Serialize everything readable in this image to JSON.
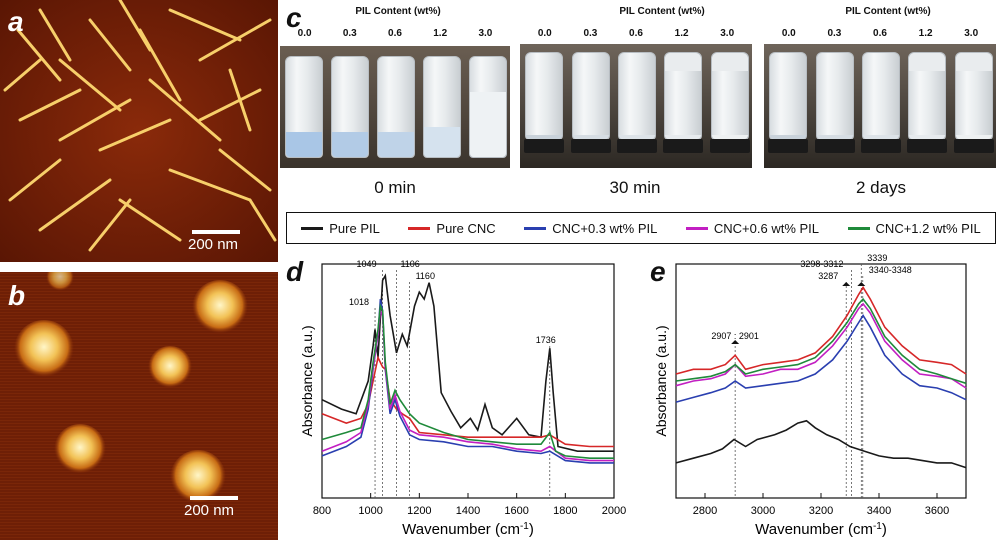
{
  "panels": {
    "a": {
      "letter": "a",
      "scale_label": "200 nm"
    },
    "b": {
      "letter": "b",
      "scale_label": "200 nm"
    },
    "c": {
      "letter": "c",
      "content_title": "PIL Content (wt%)",
      "concentrations": [
        "0.0",
        "0.3",
        "0.6",
        "1.2",
        "3.0"
      ],
      "time_labels": [
        "0 min",
        "30 min",
        "2 days"
      ]
    },
    "d": {
      "letter": "d"
    },
    "e": {
      "letter": "e"
    }
  },
  "legend": [
    {
      "label": "Pure PIL",
      "color": "#1a1a1a"
    },
    {
      "label": "Pure CNC",
      "color": "#d62728"
    },
    {
      "label": "CNC+0.3 wt% PIL",
      "color": "#2a3fb0"
    },
    {
      "label": "CNC+0.6 wt% PIL",
      "color": "#c21fc2"
    },
    {
      "label": "CNC+1.2 wt% PIL",
      "color": "#1f8a3a"
    }
  ],
  "chart_data": [
    {
      "type": "line",
      "panel": "d",
      "xlabel": "Wavenumber (cm",
      "xlabel_sup": "-1",
      "xlabel_end": ")",
      "ylabel": "Absorbance (a.u.)",
      "xlim": [
        800,
        2000
      ],
      "xticks": [
        "800",
        "1000",
        "1200",
        "1400",
        "1600",
        "1800",
        "2000"
      ],
      "annotations": [
        {
          "text": "1049",
          "x": 1049
        },
        {
          "text": "1106",
          "x": 1106
        },
        {
          "text": "1160",
          "x": 1160
        },
        {
          "text": "1018",
          "x": 1018
        },
        {
          "text": "1736",
          "x": 1736
        }
      ],
      "series": [
        {
          "name": "Pure PIL",
          "color": "#1a1a1a",
          "points": [
            [
              800,
              0.42
            ],
            [
              880,
              0.38
            ],
            [
              940,
              0.36
            ],
            [
              990,
              0.5
            ],
            [
              1010,
              0.65
            ],
            [
              1018,
              0.72
            ],
            [
              1030,
              0.6
            ],
            [
              1049,
              0.93
            ],
            [
              1060,
              0.95
            ],
            [
              1080,
              0.78
            ],
            [
              1106,
              0.62
            ],
            [
              1130,
              0.7
            ],
            [
              1150,
              0.65
            ],
            [
              1180,
              0.82
            ],
            [
              1200,
              0.88
            ],
            [
              1220,
              0.85
            ],
            [
              1240,
              0.92
            ],
            [
              1260,
              0.82
            ],
            [
              1290,
              0.45
            ],
            [
              1330,
              0.37
            ],
            [
              1370,
              0.3
            ],
            [
              1410,
              0.34
            ],
            [
              1440,
              0.29
            ],
            [
              1470,
              0.4
            ],
            [
              1500,
              0.3
            ],
            [
              1540,
              0.27
            ],
            [
              1600,
              0.34
            ],
            [
              1650,
              0.27
            ],
            [
              1700,
              0.26
            ],
            [
              1720,
              0.5
            ],
            [
              1736,
              0.64
            ],
            [
              1750,
              0.45
            ],
            [
              1770,
              0.22
            ],
            [
              1850,
              0.2
            ],
            [
              2000,
              0.2
            ]
          ]
        },
        {
          "name": "Pure CNC",
          "color": "#d62728",
          "points": [
            [
              800,
              0.36
            ],
            [
              900,
              0.32
            ],
            [
              960,
              0.34
            ],
            [
              990,
              0.4
            ],
            [
              1010,
              0.5
            ],
            [
              1030,
              0.6
            ],
            [
              1049,
              0.56
            ],
            [
              1060,
              0.55
            ],
            [
              1080,
              0.42
            ],
            [
              1106,
              0.38
            ],
            [
              1130,
              0.36
            ],
            [
              1160,
              0.34
            ],
            [
              1200,
              0.28
            ],
            [
              1300,
              0.27
            ],
            [
              1400,
              0.26
            ],
            [
              1500,
              0.26
            ],
            [
              1600,
              0.26
            ],
            [
              1700,
              0.26
            ],
            [
              1736,
              0.27
            ],
            [
              1800,
              0.23
            ],
            [
              1900,
              0.22
            ],
            [
              2000,
              0.22
            ]
          ]
        },
        {
          "name": "CNC+0.3 wt% PIL",
          "color": "#2a3fb0",
          "points": [
            [
              800,
              0.18
            ],
            [
              900,
              0.22
            ],
            [
              960,
              0.26
            ],
            [
              990,
              0.38
            ],
            [
              1010,
              0.55
            ],
            [
              1030,
              0.7
            ],
            [
              1040,
              0.85
            ],
            [
              1049,
              0.8
            ],
            [
              1060,
              0.55
            ],
            [
              1080,
              0.36
            ],
            [
              1100,
              0.42
            ],
            [
              1120,
              0.35
            ],
            [
              1160,
              0.27
            ],
            [
              1200,
              0.25
            ],
            [
              1300,
              0.24
            ],
            [
              1400,
              0.22
            ],
            [
              1500,
              0.22
            ],
            [
              1600,
              0.2
            ],
            [
              1700,
              0.19
            ],
            [
              1736,
              0.2
            ],
            [
              1800,
              0.16
            ],
            [
              1900,
              0.15
            ],
            [
              2000,
              0.15
            ]
          ]
        },
        {
          "name": "CNC+0.6 wt% PIL",
          "color": "#c21fc2",
          "points": [
            [
              800,
              0.2
            ],
            [
              900,
              0.24
            ],
            [
              960,
              0.28
            ],
            [
              990,
              0.4
            ],
            [
              1010,
              0.56
            ],
            [
              1030,
              0.7
            ],
            [
              1040,
              0.8
            ],
            [
              1049,
              0.78
            ],
            [
              1060,
              0.56
            ],
            [
              1080,
              0.38
            ],
            [
              1100,
              0.44
            ],
            [
              1120,
              0.37
            ],
            [
              1160,
              0.29
            ],
            [
              1200,
              0.27
            ],
            [
              1300,
              0.26
            ],
            [
              1400,
              0.24
            ],
            [
              1500,
              0.23
            ],
            [
              1600,
              0.21
            ],
            [
              1700,
              0.2
            ],
            [
              1736,
              0.22
            ],
            [
              1800,
              0.17
            ],
            [
              1900,
              0.16
            ],
            [
              2000,
              0.16
            ]
          ]
        },
        {
          "name": "CNC+1.2 wt% PIL",
          "color": "#1f8a3a",
          "points": [
            [
              800,
              0.25
            ],
            [
              900,
              0.28
            ],
            [
              960,
              0.3
            ],
            [
              990,
              0.42
            ],
            [
              1010,
              0.58
            ],
            [
              1030,
              0.72
            ],
            [
              1040,
              0.82
            ],
            [
              1049,
              0.8
            ],
            [
              1060,
              0.58
            ],
            [
              1080,
              0.4
            ],
            [
              1100,
              0.46
            ],
            [
              1120,
              0.42
            ],
            [
              1160,
              0.36
            ],
            [
              1200,
              0.32
            ],
            [
              1300,
              0.28
            ],
            [
              1400,
              0.25
            ],
            [
              1500,
              0.24
            ],
            [
              1600,
              0.23
            ],
            [
              1700,
              0.23
            ],
            [
              1736,
              0.28
            ],
            [
              1760,
              0.2
            ],
            [
              1800,
              0.18
            ],
            [
              1900,
              0.17
            ],
            [
              2000,
              0.17
            ]
          ]
        }
      ]
    },
    {
      "type": "line",
      "panel": "e",
      "xlabel": "Wavenumber (cm",
      "xlabel_sup": "-1",
      "xlabel_end": ")",
      "ylabel": "Absorbance (a.u.)",
      "xlim": [
        2700,
        3700
      ],
      "xticks": [
        "2800",
        "3000",
        "3200",
        "3400",
        "3600"
      ],
      "annotations": [
        {
          "text": "2907 : 2901",
          "x": 2904
        },
        {
          "text": "3298-3312",
          "x": 3305
        },
        {
          "text": "3287",
          "x": 3287
        },
        {
          "text": "3339",
          "x": 3339
        },
        {
          "text": "3340-3348",
          "x": 3344
        }
      ],
      "series": [
        {
          "name": "Pure PIL",
          "color": "#1a1a1a",
          "points": [
            [
              2700,
              0.2
            ],
            [
              2760,
              0.22
            ],
            [
              2820,
              0.24
            ],
            [
              2860,
              0.26
            ],
            [
              2900,
              0.3
            ],
            [
              2940,
              0.27
            ],
            [
              2980,
              0.3
            ],
            [
              3040,
              0.32
            ],
            [
              3080,
              0.34
            ],
            [
              3120,
              0.37
            ],
            [
              3150,
              0.38
            ],
            [
              3180,
              0.35
            ],
            [
              3220,
              0.32
            ],
            [
              3260,
              0.3
            ],
            [
              3300,
              0.27
            ],
            [
              3350,
              0.25
            ],
            [
              3400,
              0.23
            ],
            [
              3450,
              0.22
            ],
            [
              3500,
              0.22
            ],
            [
              3550,
              0.21
            ],
            [
              3600,
              0.2
            ],
            [
              3650,
              0.2
            ],
            [
              3700,
              0.18
            ]
          ]
        },
        {
          "name": "Pure CNC",
          "color": "#d62728",
          "points": [
            [
              2700,
              0.58
            ],
            [
              2760,
              0.6
            ],
            [
              2820,
              0.6
            ],
            [
              2870,
              0.62
            ],
            [
              2904,
              0.66
            ],
            [
              2940,
              0.6
            ],
            [
              3000,
              0.62
            ],
            [
              3060,
              0.63
            ],
            [
              3120,
              0.64
            ],
            [
              3180,
              0.67
            ],
            [
              3240,
              0.74
            ],
            [
              3290,
              0.83
            ],
            [
              3330,
              0.92
            ],
            [
              3345,
              0.95
            ],
            [
              3370,
              0.9
            ],
            [
              3420,
              0.78
            ],
            [
              3480,
              0.7
            ],
            [
              3540,
              0.64
            ],
            [
              3600,
              0.63
            ],
            [
              3650,
              0.62
            ],
            [
              3700,
              0.58
            ]
          ]
        },
        {
          "name": "CNC+0.3 wt% PIL",
          "color": "#2a3fb0",
          "points": [
            [
              2700,
              0.46
            ],
            [
              2760,
              0.48
            ],
            [
              2820,
              0.5
            ],
            [
              2870,
              0.52
            ],
            [
              2904,
              0.55
            ],
            [
              2940,
              0.52
            ],
            [
              3000,
              0.53
            ],
            [
              3060,
              0.54
            ],
            [
              3120,
              0.55
            ],
            [
              3180,
              0.58
            ],
            [
              3240,
              0.64
            ],
            [
              3290,
              0.72
            ],
            [
              3330,
              0.8
            ],
            [
              3345,
              0.83
            ],
            [
              3370,
              0.78
            ],
            [
              3420,
              0.66
            ],
            [
              3480,
              0.58
            ],
            [
              3540,
              0.53
            ],
            [
              3600,
              0.52
            ],
            [
              3650,
              0.5
            ],
            [
              3700,
              0.47
            ]
          ]
        },
        {
          "name": "CNC+0.6 wt% PIL",
          "color": "#c21fc2",
          "points": [
            [
              2700,
              0.53
            ],
            [
              2760,
              0.55
            ],
            [
              2820,
              0.56
            ],
            [
              2870,
              0.58
            ],
            [
              2904,
              0.62
            ],
            [
              2940,
              0.57
            ],
            [
              3000,
              0.58
            ],
            [
              3060,
              0.6
            ],
            [
              3120,
              0.6
            ],
            [
              3180,
              0.63
            ],
            [
              3240,
              0.7
            ],
            [
              3290,
              0.78
            ],
            [
              3330,
              0.86
            ],
            [
              3345,
              0.88
            ],
            [
              3370,
              0.84
            ],
            [
              3420,
              0.72
            ],
            [
              3480,
              0.64
            ],
            [
              3540,
              0.58
            ],
            [
              3600,
              0.57
            ],
            [
              3650,
              0.56
            ],
            [
              3700,
              0.52
            ]
          ]
        },
        {
          "name": "CNC+1.2 wt% PIL",
          "color": "#1f8a3a",
          "points": [
            [
              2700,
              0.55
            ],
            [
              2760,
              0.56
            ],
            [
              2820,
              0.57
            ],
            [
              2870,
              0.59
            ],
            [
              2904,
              0.62
            ],
            [
              2940,
              0.58
            ],
            [
              3000,
              0.6
            ],
            [
              3060,
              0.61
            ],
            [
              3120,
              0.62
            ],
            [
              3180,
              0.65
            ],
            [
              3240,
              0.72
            ],
            [
              3290,
              0.8
            ],
            [
              3330,
              0.88
            ],
            [
              3345,
              0.9
            ],
            [
              3370,
              0.86
            ],
            [
              3420,
              0.74
            ],
            [
              3480,
              0.66
            ],
            [
              3540,
              0.6
            ],
            [
              3600,
              0.58
            ],
            [
              3650,
              0.56
            ],
            [
              3700,
              0.54
            ]
          ]
        }
      ]
    }
  ]
}
